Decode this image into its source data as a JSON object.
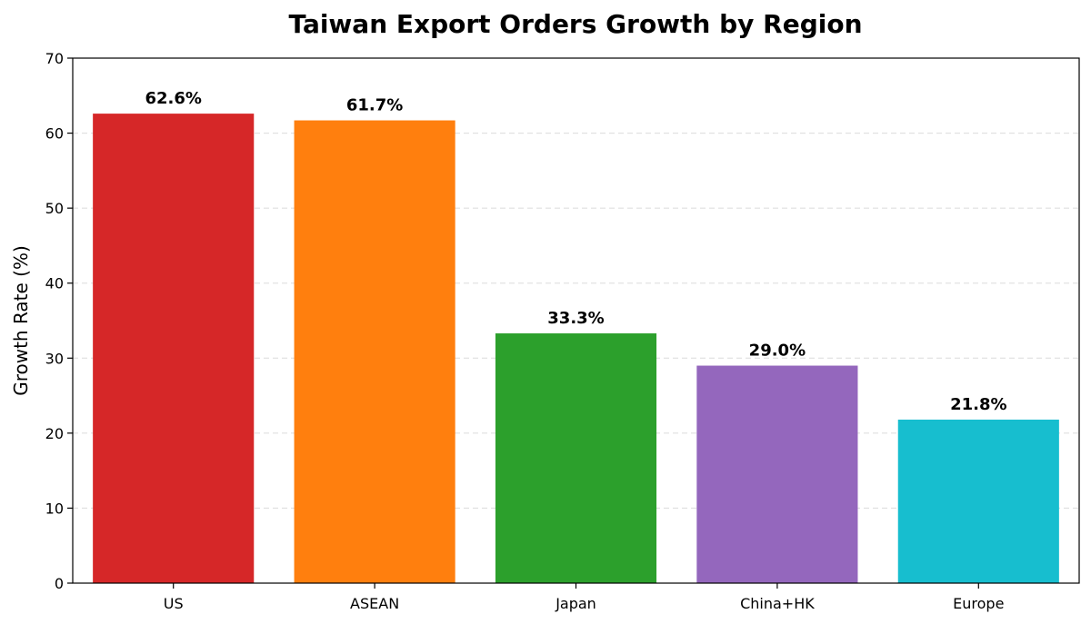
{
  "chart_data": {
    "type": "bar",
    "title": "Taiwan Export Orders Growth by Region",
    "xlabel": "",
    "ylabel": "Growth Rate (%)",
    "categories": [
      "US",
      "ASEAN",
      "Japan",
      "China+HK",
      "Europe"
    ],
    "values": [
      62.6,
      61.7,
      33.3,
      29.0,
      21.8
    ],
    "data_labels": [
      "62.6%",
      "61.7%",
      "33.3%",
      "29.0%",
      "21.8%"
    ],
    "colors": [
      "#d62728",
      "#ff7f0e",
      "#2ca02c",
      "#9467bd",
      "#17becf"
    ],
    "ylim": [
      0,
      70
    ],
    "yticks": [
      0,
      10,
      20,
      30,
      40,
      50,
      60,
      70
    ],
    "grid": true,
    "legend": "none"
  }
}
